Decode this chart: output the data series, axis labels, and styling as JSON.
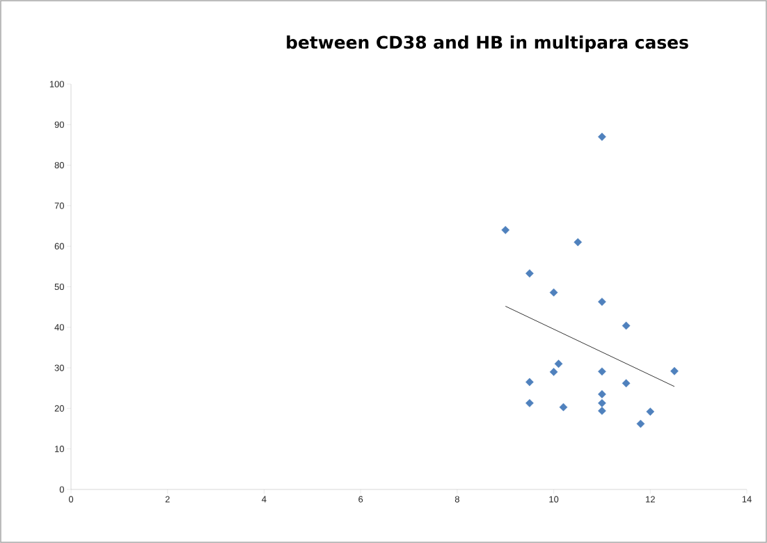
{
  "chart_data": {
    "type": "scatter",
    "title": "between CD38 and HB in multipara cases",
    "series": [
      {
        "color": "#4f81bd",
        "marker": "diamond",
        "x": [
          9,
          9.5,
          9.5,
          9.5,
          10,
          10,
          10.1,
          10.2,
          10.5,
          11,
          11,
          11,
          11,
          11,
          11,
          11.5,
          11.5,
          11.8,
          12,
          12.5
        ],
        "values": [
          64,
          53.3,
          26.5,
          21.3,
          48.6,
          29,
          31,
          20.3,
          61,
          87,
          46.3,
          29.1,
          23.5,
          21.3,
          19.4,
          40.4,
          26.2,
          16.2,
          19.2,
          29.2
        ]
      },
      {
        "type": "line",
        "color": "#000000",
        "marker": "none",
        "x": [
          9,
          12.5
        ],
        "values": [
          45.2,
          25.4
        ]
      }
    ],
    "xlim": [
      0,
      14
    ],
    "xticks": [
      0,
      2,
      4,
      6,
      8,
      10,
      12,
      14
    ],
    "ylim": [
      0,
      100
    ],
    "yticks": [
      0,
      10,
      20,
      30,
      40,
      50,
      60,
      70,
      80,
      90,
      100
    ]
  }
}
